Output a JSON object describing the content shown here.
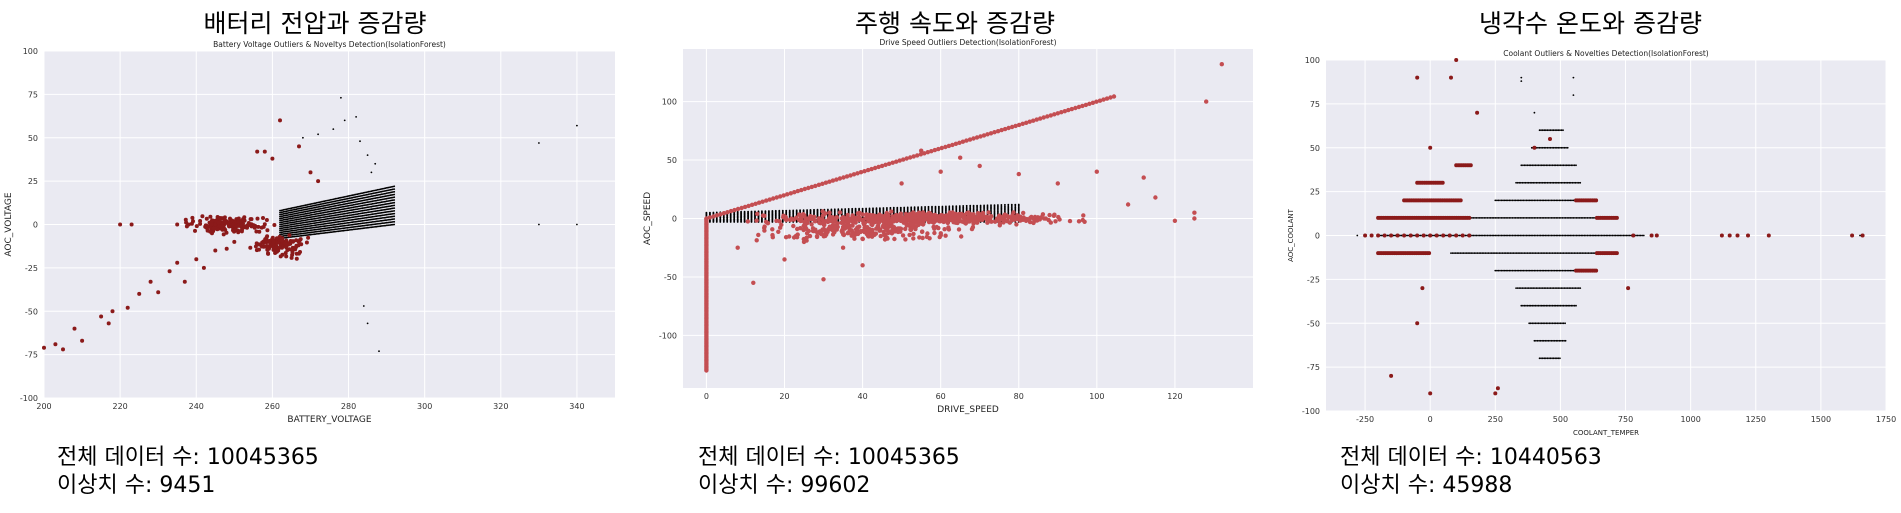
{
  "panels": [
    {
      "title": "배터리 전압과 증감량",
      "stats": {
        "total": "전체 데이터 수: 10045365",
        "outliers": "이상치 수: 9451"
      }
    },
    {
      "title": "주행 속도와 증감량",
      "stats": {
        "total": "전체 데이터 수: 10045365",
        "outliers": "이상치 수: 99602"
      }
    },
    {
      "title": "냉각수 온도와 증감량",
      "stats": {
        "total": "전체 데이터 수: 10440563",
        "outliers": "이상치 수: 45988"
      }
    }
  ],
  "chart_data": [
    {
      "type": "scatter",
      "title": "Battery Voltage Outliers & Noveltys Detection(IsolationForest)",
      "xlabel": "BATTERY_VOLTAGE",
      "ylabel": "AOC_VOLTAGE",
      "xlim": [
        200,
        350
      ],
      "ylim": [
        -100,
        100
      ],
      "xticks": [
        200,
        220,
        240,
        260,
        280,
        300,
        320,
        340
      ],
      "yticks": [
        -100,
        -75,
        -50,
        -25,
        0,
        25,
        50,
        75,
        100
      ],
      "grid": true,
      "colors": {
        "background": "#eaeaf2",
        "grid": "#ffffff",
        "inlier": "#000000",
        "outlier": "#8b1a1a"
      },
      "series": [
        {
          "role": "inlier",
          "bands": [
            {
              "x_from": 262,
              "x_to": 292,
              "y_low_start": -8,
              "y_low_end": 0,
              "y_high_start": 8,
              "y_high_end": 22
            }
          ],
          "points": [
            [
              276,
              55
            ],
            [
              279,
              60
            ],
            [
              282,
              62
            ],
            [
              272,
              52
            ],
            [
              268,
              50
            ],
            [
              285,
              40
            ],
            [
              287,
              35
            ],
            [
              283,
              48
            ],
            [
              286,
              30
            ],
            [
              278,
              73
            ],
            [
              330,
              47
            ],
            [
              340,
              57
            ],
            [
              330,
              0
            ],
            [
              340,
              0
            ],
            [
              284,
              -47
            ],
            [
              285,
              -57
            ],
            [
              288,
              -73
            ]
          ]
        },
        {
          "role": "outlier",
          "clusters": [
            {
              "x": 248,
              "y": 0,
              "rx": 14,
              "ry": 6,
              "n": 180
            },
            {
              "x": 262,
              "y": -12,
              "rx": 9,
              "ry": 9,
              "n": 120
            }
          ],
          "points": [
            [
              200,
              -71
            ],
            [
              203,
              -69
            ],
            [
              205,
              -72
            ],
            [
              208,
              -60
            ],
            [
              210,
              -67
            ],
            [
              215,
              -53
            ],
            [
              217,
              -57
            ],
            [
              218,
              -50
            ],
            [
              222,
              -48
            ],
            [
              225,
              -40
            ],
            [
              228,
              -33
            ],
            [
              230,
              -39
            ],
            [
              233,
              -27
            ],
            [
              235,
              -22
            ],
            [
              237,
              -33
            ],
            [
              240,
              -20
            ],
            [
              242,
              -25
            ],
            [
              245,
              -15
            ],
            [
              248,
              -14
            ],
            [
              250,
              -10
            ],
            [
              220,
              0
            ],
            [
              223,
              0
            ],
            [
              235,
              0
            ],
            [
              238,
              0
            ],
            [
              256,
              42
            ],
            [
              258,
              42
            ],
            [
              262,
              60
            ],
            [
              267,
              45
            ],
            [
              270,
              30
            ],
            [
              272,
              25
            ],
            [
              260,
              38
            ],
            [
              244,
              0
            ],
            [
              241,
              2
            ]
          ]
        }
      ]
    },
    {
      "type": "scatter",
      "title": "Drive Speed Outliers Detection(IsolationForest)",
      "xlabel": "DRIVE_SPEED",
      "ylabel": "AOC_SPEED",
      "xlim": [
        -6,
        140
      ],
      "ylim": [
        -145,
        145
      ],
      "xticks": [
        0,
        20,
        40,
        60,
        80,
        100,
        120
      ],
      "yticks": [
        -100,
        -50,
        0,
        50,
        100
      ],
      "grid": true,
      "colors": {
        "background": "#eaeaf2",
        "grid": "#ffffff",
        "inlier": "#000000",
        "outlier": "#c44e52"
      },
      "series": [
        {
          "role": "inlier",
          "bands": [
            {
              "x_from": 0,
              "x_to": 80,
              "y_low_start": -3,
              "y_low_end": -3,
              "y_high_start": 5,
              "y_high_end": 12
            }
          ],
          "points": []
        },
        {
          "role": "outlier",
          "line": {
            "x_from": 0,
            "x_to": 105,
            "slope": 1.0
          },
          "vertical": {
            "x": 0,
            "y_from": -130,
            "y_to": 0
          },
          "clusters": [
            {
              "x": 55,
              "y": 0,
              "rx": 50,
              "ry": 7,
              "n": 500
            },
            {
              "x": 40,
              "y": -10,
              "rx": 35,
              "ry": 12,
              "n": 250
            }
          ],
          "points": [
            [
              132,
              132
            ],
            [
              128,
              100
            ],
            [
              125,
              0
            ],
            [
              125,
              5
            ],
            [
              120,
              -2
            ],
            [
              115,
              18
            ],
            [
              112,
              35
            ],
            [
              108,
              12
            ],
            [
              100,
              40
            ],
            [
              90,
              30
            ],
            [
              80,
              38
            ],
            [
              70,
              45
            ],
            [
              65,
              52
            ],
            [
              60,
              40
            ],
            [
              55,
              58
            ],
            [
              50,
              30
            ],
            [
              40,
              -40
            ],
            [
              30,
              -52
            ],
            [
              20,
              -35
            ],
            [
              12,
              -55
            ],
            [
              25,
              -20
            ],
            [
              35,
              -25
            ],
            [
              8,
              -25
            ]
          ]
        }
      ]
    },
    {
      "type": "scatter",
      "title": "Coolant Outliers & Novelties Detection(IsolationForest)",
      "xlabel": "COOLANT_TEMPER",
      "ylabel": "AOC_COOLANT",
      "xlim": [
        -400,
        1750
      ],
      "ylim": [
        -100,
        100
      ],
      "xticks": [
        -250,
        0,
        250,
        500,
        750,
        1000,
        1250,
        1500,
        1750
      ],
      "yticks": [
        -100,
        -75,
        -50,
        -25,
        0,
        25,
        50,
        75,
        100
      ],
      "grid": true,
      "colors": {
        "background": "#eaeaf2",
        "grid": "#ffffff",
        "inlier": "#000000",
        "outlier": "#8b1a1a"
      },
      "series": [
        {
          "role": "inlier",
          "rows": [
            {
              "y": 0,
              "x_from": -200,
              "x_to": 820
            },
            {
              "y": 10,
              "x_from": 100,
              "x_to": 700
            },
            {
              "y": -10,
              "x_from": 80,
              "x_to": 700
            },
            {
              "y": 20,
              "x_from": 250,
              "x_to": 600
            },
            {
              "y": -20,
              "x_from": 250,
              "x_to": 600
            },
            {
              "y": 30,
              "x_from": 330,
              "x_to": 580
            },
            {
              "y": -30,
              "x_from": 330,
              "x_to": 580
            },
            {
              "y": 40,
              "x_from": 350,
              "x_to": 560
            },
            {
              "y": -40,
              "x_from": 350,
              "x_to": 560
            },
            {
              "y": -50,
              "x_from": 380,
              "x_to": 520
            },
            {
              "y": -60,
              "x_from": 400,
              "x_to": 520
            },
            {
              "y": -70,
              "x_from": 420,
              "x_to": 500
            },
            {
              "y": 50,
              "x_from": 390,
              "x_to": 530
            },
            {
              "y": 60,
              "x_from": 420,
              "x_to": 510
            }
          ],
          "points": [
            [
              -280,
              0
            ],
            [
              350,
              90
            ],
            [
              350,
              88
            ],
            [
              550,
              90
            ],
            [
              550,
              80
            ],
            [
              400,
              70
            ],
            [
              1650,
              0
            ]
          ]
        },
        {
          "role": "outlier",
          "rows": [
            {
              "y": 0,
              "x_from": -250,
              "x_to": 150,
              "sparse": true
            },
            {
              "y": 10,
              "x_from": -200,
              "x_to": 150
            },
            {
              "y": -10,
              "x_from": -200,
              "x_to": 0
            },
            {
              "y": 10,
              "x_from": 640,
              "x_to": 720
            },
            {
              "y": -10,
              "x_from": 640,
              "x_to": 720
            },
            {
              "y": 20,
              "x_from": -100,
              "x_to": 120
            },
            {
              "y": -20,
              "x_from": 560,
              "x_to": 640
            },
            {
              "y": 20,
              "x_from": 560,
              "x_to": 640
            },
            {
              "y": 30,
              "x_from": -50,
              "x_to": 50
            },
            {
              "y": 40,
              "x_from": 100,
              "x_to": 160
            }
          ],
          "points": [
            [
              -50,
              90
            ],
            [
              80,
              90
            ],
            [
              100,
              100
            ],
            [
              180,
              70
            ],
            [
              -30,
              -30
            ],
            [
              -50,
              -50
            ],
            [
              0,
              -90
            ],
            [
              -150,
              -80
            ],
            [
              250,
              -90
            ],
            [
              260,
              -87
            ],
            [
              0,
              50
            ],
            [
              1120,
              0
            ],
            [
              1150,
              0
            ],
            [
              1180,
              0
            ],
            [
              1220,
              0
            ],
            [
              1300,
              0
            ],
            [
              850,
              0
            ],
            [
              870,
              0
            ],
            [
              780,
              0
            ],
            [
              1620,
              0
            ],
            [
              1660,
              0
            ],
            [
              400,
              50
            ],
            [
              460,
              55
            ],
            [
              760,
              -30
            ]
          ]
        }
      ]
    }
  ]
}
